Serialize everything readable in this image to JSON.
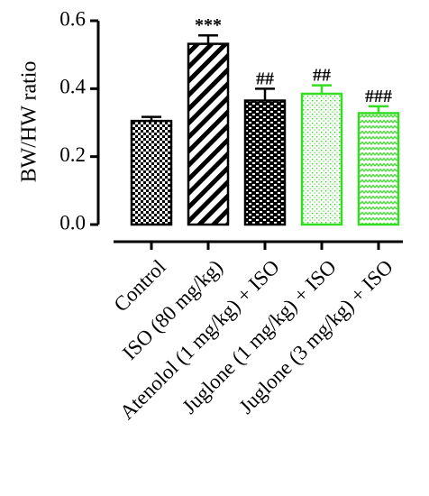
{
  "chart_data": {
    "type": "bar",
    "ylabel": "BW/HW ratio",
    "xlabel": "",
    "ylim": [
      0.0,
      0.6
    ],
    "yticks": [
      0.0,
      0.2,
      0.4,
      0.6
    ],
    "ytick_labels": [
      "0.0",
      "0.2",
      "0.4",
      "0.6"
    ],
    "grid": false,
    "categories": [
      "Control",
      "ISO (80 mg/kg)",
      "Atenolol (1 mg/kg) + ISO",
      "Juglone (1 mg/kg) + ISO",
      "Juglone (3 mg/kg) + ISO"
    ],
    "values": [
      0.305,
      0.532,
      0.365,
      0.385,
      0.328
    ],
    "errors": [
      0.012,
      0.025,
      0.035,
      0.025,
      0.02
    ],
    "annotations": [
      "",
      "***",
      "##",
      "##",
      "###"
    ],
    "bar_colors": [
      "#000000",
      "#000000",
      "#000000",
      "#33dd22",
      "#33dd22"
    ],
    "patterns": [
      "checker",
      "diagonal",
      "brick",
      "dots",
      "zigzag"
    ]
  }
}
